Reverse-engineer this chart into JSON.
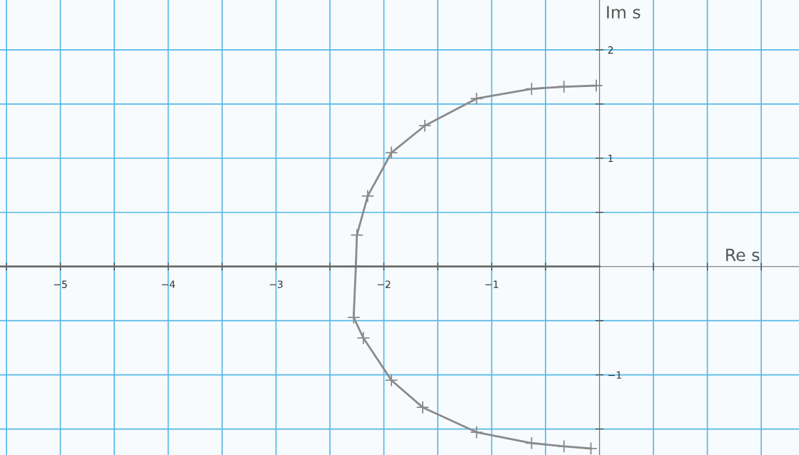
{
  "chart_data": {
    "type": "line",
    "xlabel": "Re s",
    "ylabel": "Im s",
    "xlim": [
      -5.56,
      1.85
    ],
    "ylim": [
      -1.74,
      2.46
    ],
    "xticks": [
      {
        "value": -5.5,
        "label": null
      },
      -5,
      {
        "value": -4.5,
        "label": null
      },
      -4,
      {
        "value": -3.5,
        "label": null
      },
      -3,
      {
        "value": -2.5,
        "label": null
      },
      -2,
      {
        "value": -1.5,
        "label": null
      },
      -1,
      {
        "value": -0.5,
        "label": null
      },
      {
        "value": 0.5,
        "label": null
      },
      {
        "value": 1,
        "label": null
      },
      {
        "value": 1.5,
        "label": null
      }
    ],
    "yticks": [
      {
        "value": -1.5,
        "label": null
      },
      -1,
      {
        "value": -0.5,
        "label": null
      },
      {
        "value": 0.5,
        "label": null
      },
      1,
      {
        "value": 1.5,
        "label": null
      },
      2
    ],
    "grid": true,
    "marker": "cross",
    "series": [
      {
        "color": "#8a8a8a",
        "x": [
          -0.03,
          -0.33,
          -0.63,
          -1.14,
          -1.62,
          -1.93,
          -2.15,
          -2.25,
          -2.26,
          -2.28,
          -2.19,
          -1.93,
          -1.64,
          -1.14,
          -0.63,
          -0.33,
          -0.08
        ],
        "values": [
          1.67,
          1.66,
          1.64,
          1.55,
          1.3,
          1.05,
          0.65,
          0.29,
          0,
          -0.47,
          -0.66,
          -1.05,
          -1.3,
          -1.53,
          -1.63,
          -1.66,
          -1.68
        ]
      },
      {
        "color": "#6a6a6a",
        "marker": "none",
        "x": [
          -5.56,
          0
        ],
        "values": [
          0,
          0
        ]
      }
    ]
  }
}
